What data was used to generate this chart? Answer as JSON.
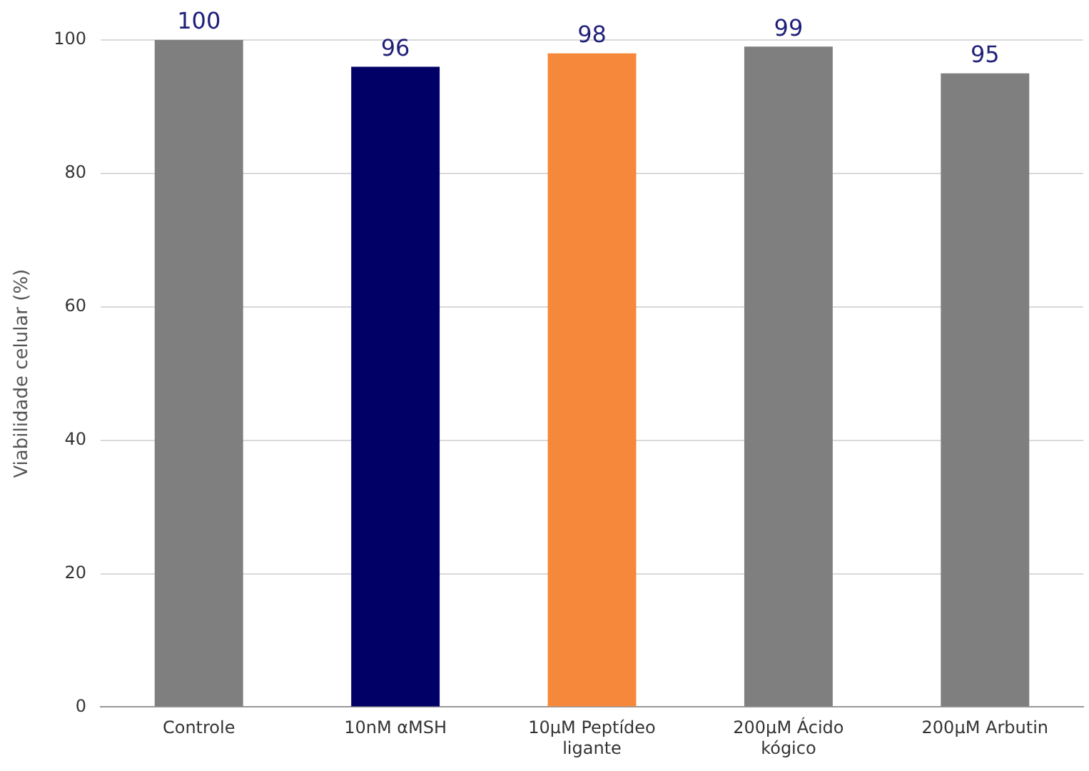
{
  "chart_data": {
    "type": "bar",
    "ylabel": "Viabilidade celular (%)",
    "categories": [
      "Controle",
      "10nM αMSH",
      "10µM Peptídeo ligante",
      "200µM Ácido kógico",
      "200µM Arbutin"
    ],
    "values": [
      100,
      96,
      98,
      99,
      95
    ],
    "colors": [
      "#7f7f7f",
      "#000066",
      "#f5883a",
      "#7f7f7f",
      "#7f7f7f"
    ],
    "ylim": [
      0,
      100
    ],
    "yticks": [
      0,
      20,
      40,
      60,
      80,
      100
    ],
    "grid": "y",
    "data_labels": true,
    "legend": false
  }
}
